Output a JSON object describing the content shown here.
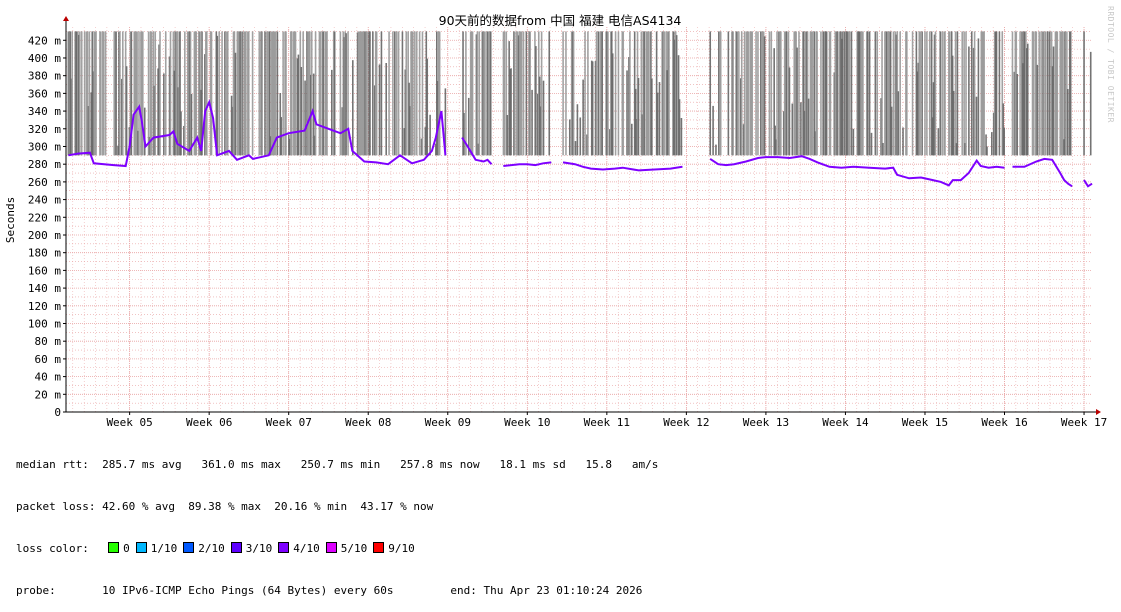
{
  "chart_data": {
    "type": "line",
    "title": "90天前的数据from 中国 福建 电信AS4134",
    "ylabel": "Seconds",
    "ylim": [
      0,
      435
    ],
    "y_ticks": [
      {
        "v": 0,
        "label": "0"
      },
      {
        "v": 20,
        "label": "20 m"
      },
      {
        "v": 40,
        "label": "40 m"
      },
      {
        "v": 60,
        "label": "60 m"
      },
      {
        "v": 80,
        "label": "80 m"
      },
      {
        "v": 100,
        "label": "100 m"
      },
      {
        "v": 120,
        "label": "120 m"
      },
      {
        "v": 140,
        "label": "140 m"
      },
      {
        "v": 160,
        "label": "160 m"
      },
      {
        "v": 180,
        "label": "180 m"
      },
      {
        "v": 200,
        "label": "200 m"
      },
      {
        "v": 220,
        "label": "220 m"
      },
      {
        "v": 240,
        "label": "240 m"
      },
      {
        "v": 260,
        "label": "260 m"
      },
      {
        "v": 280,
        "label": "280 m"
      },
      {
        "v": 300,
        "label": "300 m"
      },
      {
        "v": 320,
        "label": "320 m"
      },
      {
        "v": 340,
        "label": "340 m"
      },
      {
        "v": 360,
        "label": "360 m"
      },
      {
        "v": 380,
        "label": "380 m"
      },
      {
        "v": 400,
        "label": "400 m"
      },
      {
        "v": 420,
        "label": "420 m"
      }
    ],
    "x_range_weeks": [
      4.2,
      17.1
    ],
    "x_ticks": [
      {
        "w": 5,
        "label": "Week 05"
      },
      {
        "w": 6,
        "label": "Week 06"
      },
      {
        "w": 7,
        "label": "Week 07"
      },
      {
        "w": 8,
        "label": "Week 08"
      },
      {
        "w": 9,
        "label": "Week 09"
      },
      {
        "w": 10,
        "label": "Week 10"
      },
      {
        "w": 11,
        "label": "Week 11"
      },
      {
        "w": 12,
        "label": "Week 12"
      },
      {
        "w": 13,
        "label": "Week 13"
      },
      {
        "w": 14,
        "label": "Week 14"
      },
      {
        "w": 15,
        "label": "Week 15"
      },
      {
        "w": 16,
        "label": "Week 16"
      },
      {
        "w": 17,
        "label": "Week 17"
      }
    ],
    "grid": true,
    "series": [
      {
        "median_rtt_ms_segments": [
          [
            [
              4.23,
              290
            ],
            [
              4.35,
              292
            ],
            [
              4.5,
              293
            ],
            [
              4.55,
              281
            ],
            [
              4.8,
              279
            ],
            [
              4.95,
              278
            ],
            [
              5.0,
              300
            ],
            [
              5.05,
              336
            ],
            [
              5.12,
              345
            ],
            [
              5.15,
              330
            ],
            [
              5.2,
              300
            ],
            [
              5.3,
              310
            ],
            [
              5.5,
              313
            ],
            [
              5.55,
              317
            ],
            [
              5.6,
              303
            ],
            [
              5.75,
              295
            ],
            [
              5.85,
              310
            ],
            [
              5.9,
              295
            ],
            [
              5.95,
              340
            ],
            [
              6.0,
              350
            ],
            [
              6.05,
              332
            ],
            [
              6.1,
              290
            ],
            [
              6.25,
              295
            ],
            [
              6.35,
              285
            ],
            [
              6.5,
              290
            ],
            [
              6.55,
              286
            ],
            [
              6.75,
              290
            ],
            [
              6.85,
              310
            ],
            [
              7.0,
              315
            ],
            [
              7.2,
              318
            ],
            [
              7.3,
              340
            ],
            [
              7.35,
              325
            ],
            [
              7.5,
              320
            ],
            [
              7.65,
              315
            ],
            [
              7.75,
              320
            ],
            [
              7.8,
              295
            ],
            [
              7.95,
              283
            ],
            [
              8.1,
              282
            ],
            [
              8.25,
              280
            ],
            [
              8.4,
              290
            ],
            [
              8.55,
              281
            ],
            [
              8.7,
              285
            ],
            [
              8.8,
              295
            ],
            [
              8.85,
              310
            ],
            [
              8.92,
              340
            ],
            [
              8.97,
              290
            ]
          ],
          [
            [
              9.18,
              310
            ],
            [
              9.25,
              300
            ],
            [
              9.35,
              285
            ],
            [
              9.45,
              283
            ],
            [
              9.5,
              285
            ],
            [
              9.55,
              280
            ]
          ],
          [
            [
              9.7,
              278
            ],
            [
              9.9,
              280
            ],
            [
              10.0,
              280
            ],
            [
              10.1,
              279
            ],
            [
              10.2,
              281
            ],
            [
              10.3,
              282
            ]
          ],
          [
            [
              10.45,
              282
            ],
            [
              10.6,
              280
            ],
            [
              10.7,
              277
            ],
            [
              10.8,
              275
            ],
            [
              10.95,
              274
            ],
            [
              11.1,
              275
            ],
            [
              11.2,
              276
            ],
            [
              11.4,
              273
            ],
            [
              11.6,
              274
            ],
            [
              11.8,
              275
            ],
            [
              11.95,
              277
            ]
          ],
          [
            [
              12.3,
              286
            ],
            [
              12.4,
              280
            ],
            [
              12.5,
              279
            ],
            [
              12.6,
              280
            ],
            [
              12.75,
              283
            ],
            [
              12.9,
              287
            ],
            [
              13.0,
              288
            ],
            [
              13.15,
              288
            ],
            [
              13.3,
              287
            ],
            [
              13.45,
              289
            ],
            [
              13.55,
              286
            ],
            [
              13.65,
              282
            ],
            [
              13.8,
              277
            ],
            [
              13.95,
              276
            ],
            [
              14.1,
              277
            ],
            [
              14.3,
              276
            ],
            [
              14.5,
              275
            ],
            [
              14.6,
              276
            ],
            [
              14.65,
              268
            ],
            [
              14.8,
              264
            ],
            [
              14.95,
              265
            ],
            [
              15.1,
              262
            ],
            [
              15.2,
              260
            ],
            [
              15.3,
              256
            ],
            [
              15.35,
              262
            ],
            [
              15.45,
              262
            ],
            [
              15.55,
              270
            ],
            [
              15.65,
              284
            ],
            [
              15.7,
              278
            ],
            [
              15.8,
              276
            ],
            [
              15.9,
              277
            ],
            [
              16.0,
              276
            ]
          ],
          [
            [
              16.1,
              277
            ],
            [
              16.25,
              277
            ],
            [
              16.4,
              283
            ],
            [
              16.5,
              286
            ],
            [
              16.6,
              285
            ],
            [
              16.7,
              270
            ],
            [
              16.75,
              262
            ],
            [
              16.8,
              258
            ],
            [
              16.85,
              255
            ]
          ],
          [
            [
              17.0,
              262
            ],
            [
              17.05,
              255
            ],
            [
              17.1,
              258
            ]
          ]
        ]
      }
    ],
    "loss_colors": [
      {
        "label": "0",
        "color": "#26ff00"
      },
      {
        "label": "1/10",
        "color": "#00b8ff"
      },
      {
        "label": "2/10",
        "color": "#0059ff"
      },
      {
        "label": "3/10",
        "color": "#5e00ff"
      },
      {
        "label": "4/10",
        "color": "#7e00ff"
      },
      {
        "label": "5/10",
        "color": "#dd00ff"
      },
      {
        "label": "9/10",
        "color": "#ff0000"
      }
    ],
    "line_loss_color": "#7e00ff",
    "spike_color": "#ff0000",
    "smoke_color": "#888888",
    "axis_color": "#000000",
    "grid_color": "#e8a0a0"
  },
  "stats": {
    "median_label": "median rtt:",
    "median_values": "285.7 ms avg   361.0 ms max   250.7 ms min   257.8 ms now   18.1 ms sd   15.8   am/s",
    "loss_label": "packet loss:",
    "loss_values": "42.60 % avg  89.38 % max  20.16 % min  43.17 % now",
    "loss_color_label": "loss color:",
    "probe_label": "probe:",
    "probe_value": "10 IPv6-ICMP Echo Pings (64 Bytes) every 60s",
    "end_text": "end: Thu Apr 23 01:10:24 2026"
  },
  "watermark": "RRDTOOL / TOBI OETIKER"
}
